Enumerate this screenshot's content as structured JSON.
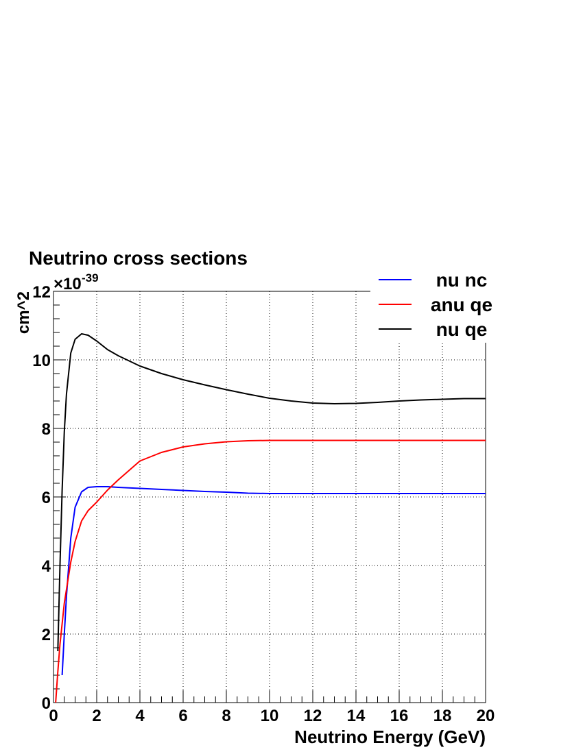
{
  "chart_data": {
    "type": "line",
    "title": "Neutrino cross sections",
    "x_label": "Neutrino Energy (GeV)",
    "y_label": "cm^2",
    "y_multiplier": "×10",
    "y_exponent": "-39",
    "x": [
      0.1,
      0.2,
      0.3,
      0.4,
      0.5,
      0.6,
      0.8,
      1,
      1.3,
      1.6,
      2,
      2.5,
      3,
      4,
      5,
      6,
      7,
      8,
      9,
      10,
      11,
      12,
      13,
      14,
      15,
      16,
      17,
      18,
      19,
      20
    ],
    "series": [
      {
        "name": "nu nc",
        "color": "#0000ff",
        "values": [
          null,
          null,
          null,
          0.8,
          2.0,
          3.1,
          4.8,
          5.7,
          6.15,
          6.28,
          6.3,
          6.3,
          6.28,
          6.25,
          6.22,
          6.19,
          6.16,
          6.14,
          6.11,
          6.1,
          6.1,
          6.1,
          6.1,
          6.1,
          6.1,
          6.1,
          6.1,
          6.1,
          6.1,
          6.1
        ]
      },
      {
        "name": "anu qe",
        "color": "#ff0000",
        "values": [
          0,
          0.9,
          1.7,
          2.3,
          2.9,
          3.3,
          4.1,
          4.7,
          5.3,
          5.6,
          5.85,
          6.2,
          6.5,
          7.05,
          7.3,
          7.46,
          7.55,
          7.61,
          7.64,
          7.65,
          7.65,
          7.65,
          7.65,
          7.65,
          7.65,
          7.65,
          7.65,
          7.65,
          7.65,
          7.65
        ]
      },
      {
        "name": "nu qe",
        "color": "#000000",
        "values": [
          null,
          1.5,
          4.0,
          6.2,
          7.9,
          9.0,
          10.2,
          10.6,
          10.76,
          10.72,
          10.55,
          10.3,
          10.12,
          9.82,
          9.6,
          9.42,
          9.27,
          9.13,
          9.0,
          8.88,
          8.8,
          8.74,
          8.72,
          8.73,
          8.76,
          8.8,
          8.83,
          8.85,
          8.87,
          8.87
        ]
      }
    ],
    "xlim": [
      0,
      20
    ],
    "xticks": [
      0,
      2,
      4,
      6,
      8,
      10,
      12,
      14,
      16,
      18,
      20
    ],
    "ylim": [
      0,
      12
    ],
    "yticks": [
      0,
      2,
      4,
      6,
      8,
      10,
      12
    ],
    "grid": true,
    "legend": "top-right"
  }
}
